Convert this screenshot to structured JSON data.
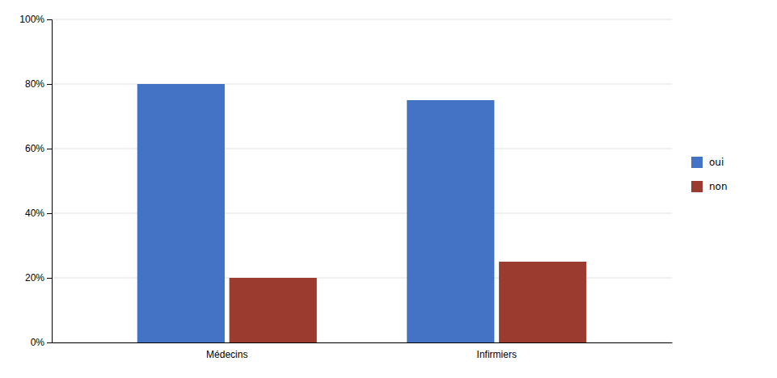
{
  "chart_data": {
    "type": "bar",
    "categories": [
      "Médecins",
      "Infirmiers"
    ],
    "series": [
      {
        "name": "oui",
        "color": "#4472C4",
        "values": [
          0.8,
          0.75
        ]
      },
      {
        "name": "non",
        "color": "#9B3A2E",
        "values": [
          0.2,
          0.25
        ]
      }
    ],
    "ylim": [
      0,
      1.0
    ],
    "yticks": [
      {
        "value": 0.0,
        "label": "0%"
      },
      {
        "value": 0.2,
        "label": "20%"
      },
      {
        "value": 0.4,
        "label": "40%"
      },
      {
        "value": 0.6,
        "label": "60%"
      },
      {
        "value": 0.8,
        "label": "80%"
      },
      {
        "value": 1.0,
        "label": "100%"
      }
    ],
    "grid": true,
    "legend": "right"
  }
}
